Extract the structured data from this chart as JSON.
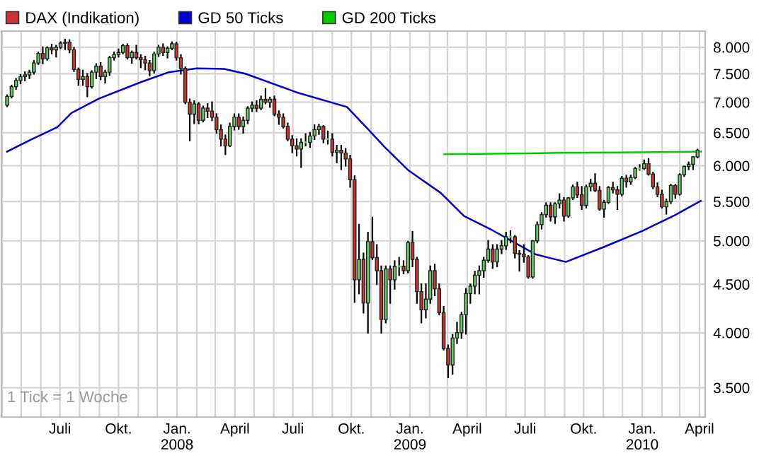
{
  "chart_data": {
    "type": "candlestick",
    "legend": "top left",
    "grid": true,
    "log": "y",
    "marker": "none",
    "line_style": "solid",
    "xlim": [
      "2007-03-31",
      "2010-04-10"
    ],
    "ylim": [
      3260,
      8320
    ],
    "yticks": [
      {
        "value": 3500,
        "label": "3.500"
      },
      {
        "value": 4000,
        "label": "4.000"
      },
      {
        "value": 4500,
        "label": "4.500"
      },
      {
        "value": 5000,
        "label": "5.000"
      },
      {
        "value": 5500,
        "label": "5.500"
      },
      {
        "value": 6000,
        "label": "6.000"
      },
      {
        "value": 6500,
        "label": "6.500"
      },
      {
        "value": 7000,
        "label": "7.000"
      },
      {
        "value": 7500,
        "label": "7.500"
      },
      {
        "value": 8000,
        "label": "8.000"
      }
    ],
    "xticks": [
      {
        "value": "2007-04-01",
        "label": null
      },
      {
        "value": "2007-05-01",
        "label": null
      },
      {
        "value": "2007-06-01",
        "label": null
      },
      {
        "value": "2007-07-01",
        "label": "Juli"
      },
      {
        "value": "2007-08-01",
        "label": null
      },
      {
        "value": "2007-09-01",
        "label": null
      },
      {
        "value": "2007-10-01",
        "label": "Okt."
      },
      {
        "value": "2007-11-01",
        "label": null
      },
      {
        "value": "2007-12-01",
        "label": null
      },
      {
        "value": "2008-01-01",
        "label": "Jan.\n2008"
      },
      {
        "value": "2008-02-01",
        "label": null
      },
      {
        "value": "2008-03-01",
        "label": null
      },
      {
        "value": "2008-04-01",
        "label": "April"
      },
      {
        "value": "2008-05-01",
        "label": null
      },
      {
        "value": "2008-06-01",
        "label": null
      },
      {
        "value": "2008-07-01",
        "label": "Juli"
      },
      {
        "value": "2008-08-01",
        "label": null
      },
      {
        "value": "2008-09-01",
        "label": null
      },
      {
        "value": "2008-10-01",
        "label": "Okt."
      },
      {
        "value": "2008-11-01",
        "label": null
      },
      {
        "value": "2008-12-01",
        "label": null
      },
      {
        "value": "2009-01-01",
        "label": "Jan.\n2009"
      },
      {
        "value": "2009-02-01",
        "label": null
      },
      {
        "value": "2009-03-01",
        "label": null
      },
      {
        "value": "2009-04-01",
        "label": "April"
      },
      {
        "value": "2009-05-01",
        "label": null
      },
      {
        "value": "2009-06-01",
        "label": null
      },
      {
        "value": "2009-07-01",
        "label": "Juli"
      },
      {
        "value": "2009-08-01",
        "label": null
      },
      {
        "value": "2009-09-01",
        "label": null
      },
      {
        "value": "2009-10-01",
        "label": "Okt."
      },
      {
        "value": "2009-11-01",
        "label": null
      },
      {
        "value": "2009-12-01",
        "label": null
      },
      {
        "value": "2010-01-01",
        "label": "Jan.\n2010"
      },
      {
        "value": "2010-02-01",
        "label": null
      },
      {
        "value": "2010-03-01",
        "label": null
      },
      {
        "value": "2010-04-01",
        "label": "April"
      }
    ],
    "annotations": [
      "1 Tick = 1 Woche"
    ],
    "series": [
      {
        "name": "DAX (Indikation)",
        "type": "candlestick",
        "color": "#cc3333",
        "colors": [
          "#66cc66",
          "#66cc66",
          "#66cc66",
          "#66cc66",
          "#66cc66",
          "#66cc66",
          "#66cc66",
          "#66cc66",
          "#cc3333",
          "#66cc66",
          "#cc3333",
          "#66cc66",
          "#66cc66",
          "#66cc66",
          "#cc3333",
          "#cc3333",
          "#cc3333",
          "#66cc66",
          "#cc3333",
          "#66cc66",
          "#66cc66",
          "#cc3333",
          "#66cc66",
          "#66cc66",
          "#66cc66",
          "#66cc66",
          "#66cc66",
          "#cc3333",
          "#66cc66",
          "#cc3333",
          "#cc3333",
          "#cc3333",
          "#cc3333",
          "#66cc66",
          "#66cc66",
          "#cc3333",
          "#66cc66",
          "#66cc66",
          "#cc3333",
          "#cc3333",
          "#cc3333",
          "#cc3333",
          "#66cc66",
          "#cc3333",
          "#66cc66",
          "#cc3333",
          "#cc3333",
          "#cc3333",
          "#cc3333",
          "#cc3333",
          "#66cc66",
          "#66cc66",
          "#cc3333",
          "#66cc66",
          "#66cc66",
          "#66cc66",
          "#cc3333",
          "#66cc66",
          "#cc3333",
          "#66cc66",
          "#cc3333",
          "#cc3333",
          "#cc3333",
          "#cc3333",
          "#cc3333",
          "#cc3333",
          "#66cc66",
          "#66cc66",
          "#66cc66",
          "#66cc66",
          "#66cc66",
          "#cc3333",
          "#66cc66",
          "#cc3333",
          "#66cc66",
          "#cc3333",
          "#cc3333",
          "#cc3333",
          "#cc3333",
          "#66cc66",
          "#cc3333",
          "#66cc66",
          "#cc3333",
          "#cc3333",
          "#cc3333",
          "#66cc66",
          "#cc3333",
          "#66cc66",
          "#66cc66",
          "#cc3333",
          "#66cc66",
          "#cc3333",
          "#cc3333",
          "#cc3333",
          "#66cc66",
          "#66cc66",
          "#cc3333",
          "#cc3333",
          "#cc3333",
          "#cc3333",
          "#66cc66",
          "#66cc66",
          "#66cc66",
          "#66cc66",
          "#66cc66",
          "#66cc66",
          "#66cc66",
          "#66cc66",
          "#66cc66",
          "#cc3333",
          "#66cc66",
          "#66cc66",
          "#66cc66",
          "#66cc66",
          "#cc3333",
          "#cc3333",
          "#cc3333",
          "#cc3333",
          "#66cc66",
          "#66cc66",
          "#66cc66",
          "#66cc66",
          "#cc3333",
          "#66cc66",
          "#66cc66",
          "#cc3333",
          "#66cc66",
          "#66cc66",
          "#cc3333",
          "#cc3333",
          "#66cc66",
          "#66cc66",
          "#cc3333",
          "#cc3333",
          "#66cc66",
          "#66cc66",
          "#cc3333",
          "#cc3333",
          "#66cc66",
          "#cc3333",
          "#66cc66",
          "#66cc66",
          "#66cc66",
          "#66cc66",
          "#cc3333",
          "#cc3333",
          "#cc3333",
          "#cc3333",
          "#66cc66",
          "#66cc66",
          "#cc3333",
          "#66cc66",
          "#66cc66",
          "#66cc66",
          "#66cc66",
          "#66cc66"
        ],
        "x": [
          "2007-04-09",
          "2007-04-16",
          "2007-04-23",
          "2007-04-30",
          "2007-05-07",
          "2007-05-14",
          "2007-05-21",
          "2007-05-28",
          "2007-06-04",
          "2007-06-11",
          "2007-06-18",
          "2007-06-25",
          "2007-07-02",
          "2007-07-09",
          "2007-07-16",
          "2007-07-23",
          "2007-07-30",
          "2007-08-06",
          "2007-08-13",
          "2007-08-20",
          "2007-08-27",
          "2007-09-03",
          "2007-09-10",
          "2007-09-17",
          "2007-09-24",
          "2007-10-01",
          "2007-10-08",
          "2007-10-15",
          "2007-10-22",
          "2007-10-29",
          "2007-11-05",
          "2007-11-12",
          "2007-11-19",
          "2007-11-26",
          "2007-12-03",
          "2007-12-10",
          "2007-12-17",
          "2007-12-24",
          "2007-12-31",
          "2008-01-07",
          "2008-01-14",
          "2008-01-21",
          "2008-01-28",
          "2008-02-04",
          "2008-02-11",
          "2008-02-18",
          "2008-02-25",
          "2008-03-03",
          "2008-03-10",
          "2008-03-17",
          "2008-03-24",
          "2008-03-31",
          "2008-04-07",
          "2008-04-14",
          "2008-04-21",
          "2008-04-28",
          "2008-05-05",
          "2008-05-12",
          "2008-05-19",
          "2008-05-26",
          "2008-06-02",
          "2008-06-09",
          "2008-06-16",
          "2008-06-23",
          "2008-06-30",
          "2008-07-07",
          "2008-07-14",
          "2008-07-21",
          "2008-07-28",
          "2008-08-04",
          "2008-08-11",
          "2008-08-18",
          "2008-08-25",
          "2008-09-01",
          "2008-09-08",
          "2008-09-15",
          "2008-09-22",
          "2008-09-29",
          "2008-10-06",
          "2008-10-13",
          "2008-10-20",
          "2008-10-27",
          "2008-11-03",
          "2008-11-10",
          "2008-11-17",
          "2008-11-24",
          "2008-12-01",
          "2008-12-08",
          "2008-12-15",
          "2008-12-22",
          "2008-12-29",
          "2009-01-05",
          "2009-01-12",
          "2009-01-19",
          "2009-01-26",
          "2009-02-02",
          "2009-02-09",
          "2009-02-16",
          "2009-02-23",
          "2009-03-02",
          "2009-03-09",
          "2009-03-16",
          "2009-03-23",
          "2009-03-30",
          "2009-04-06",
          "2009-04-13",
          "2009-04-20",
          "2009-04-27",
          "2009-05-04",
          "2009-05-11",
          "2009-05-18",
          "2009-05-25",
          "2009-06-01",
          "2009-06-08",
          "2009-06-15",
          "2009-06-22",
          "2009-06-29",
          "2009-07-06",
          "2009-07-13",
          "2009-07-20",
          "2009-07-27",
          "2009-08-03",
          "2009-08-10",
          "2009-08-17",
          "2009-08-24",
          "2009-08-31",
          "2009-09-07",
          "2009-09-14",
          "2009-09-21",
          "2009-09-28",
          "2009-10-05",
          "2009-10-12",
          "2009-10-19",
          "2009-10-26",
          "2009-11-02",
          "2009-11-09",
          "2009-11-16",
          "2009-11-23",
          "2009-11-30",
          "2009-12-07",
          "2009-12-14",
          "2009-12-21",
          "2009-12-28",
          "2010-01-04",
          "2010-01-11",
          "2010-01-18",
          "2010-01-25",
          "2010-02-01",
          "2010-02-08",
          "2010-02-15",
          "2010-02-22",
          "2010-03-01",
          "2010-03-08",
          "2010-03-15",
          "2010-03-22",
          "2010-03-29"
        ],
        "ohlc": [
          [
            6950,
            7120,
            6930,
            7100
          ],
          [
            7100,
            7290,
            7080,
            7270
          ],
          [
            7270,
            7410,
            7230,
            7380
          ],
          [
            7380,
            7480,
            7330,
            7450
          ],
          [
            7450,
            7530,
            7380,
            7480
          ],
          [
            7480,
            7560,
            7420,
            7530
          ],
          [
            7530,
            7740,
            7500,
            7700
          ],
          [
            7700,
            7900,
            7680,
            7880
          ],
          [
            7880,
            8000,
            7690,
            7780
          ],
          [
            7780,
            8000,
            7760,
            7990
          ],
          [
            7990,
            8050,
            7880,
            7950
          ],
          [
            7950,
            8030,
            7820,
            8000
          ],
          [
            8000,
            8100,
            7980,
            8080
          ],
          [
            8080,
            8150,
            7960,
            8100
          ],
          [
            8100,
            8140,
            7900,
            7950
          ],
          [
            7950,
            7990,
            7550,
            7580
          ],
          [
            7580,
            7600,
            7300,
            7400
          ],
          [
            7400,
            7560,
            7300,
            7450
          ],
          [
            7450,
            7500,
            7100,
            7270
          ],
          [
            7270,
            7550,
            7250,
            7530
          ],
          [
            7530,
            7680,
            7420,
            7640
          ],
          [
            7640,
            7700,
            7400,
            7450
          ],
          [
            7450,
            7560,
            7340,
            7530
          ],
          [
            7530,
            7820,
            7480,
            7800
          ],
          [
            7800,
            7900,
            7760,
            7860
          ],
          [
            7860,
            7960,
            7820,
            7900
          ],
          [
            7900,
            8050,
            7880,
            8030
          ],
          [
            8030,
            8060,
            7780,
            7800
          ],
          [
            7800,
            7920,
            7700,
            7900
          ],
          [
            7900,
            8030,
            7780,
            7800
          ],
          [
            7800,
            7850,
            7620,
            7760
          ],
          [
            7760,
            7820,
            7580,
            7700
          ],
          [
            7700,
            7740,
            7470,
            7560
          ],
          [
            7560,
            7900,
            7520,
            7870
          ],
          [
            7870,
            8030,
            7830,
            8000
          ],
          [
            8000,
            8060,
            7850,
            7900
          ],
          [
            7900,
            8000,
            7800,
            7980
          ],
          [
            7980,
            8100,
            7960,
            8067
          ],
          [
            8067,
            8090,
            7760,
            7800
          ],
          [
            7800,
            7850,
            7500,
            7600
          ],
          [
            7600,
            7620,
            6980,
            7000
          ],
          [
            7000,
            7050,
            6380,
            6800
          ],
          [
            6800,
            7020,
            6650,
            6970
          ],
          [
            6970,
            6990,
            6650,
            6700
          ],
          [
            6700,
            6930,
            6680,
            6900
          ],
          [
            6900,
            6970,
            6750,
            6850
          ],
          [
            6850,
            7000,
            6700,
            6750
          ],
          [
            6750,
            6800,
            6500,
            6550
          ],
          [
            6550,
            6620,
            6300,
            6400
          ],
          [
            6400,
            6460,
            6170,
            6300
          ],
          [
            6300,
            6650,
            6290,
            6600
          ],
          [
            6600,
            6800,
            6550,
            6750
          ],
          [
            6750,
            6800,
            6560,
            6600
          ],
          [
            6600,
            6750,
            6500,
            6700
          ],
          [
            6700,
            6920,
            6650,
            6900
          ],
          [
            6900,
            7000,
            6850,
            6950
          ],
          [
            6950,
            7020,
            6850,
            6900
          ],
          [
            6900,
            7100,
            6880,
            7050
          ],
          [
            7050,
            7230,
            6980,
            7000
          ],
          [
            7000,
            7080,
            6920,
            7050
          ],
          [
            7050,
            7100,
            6780,
            6800
          ],
          [
            6800,
            6850,
            6640,
            6750
          ],
          [
            6750,
            6800,
            6580,
            6600
          ],
          [
            6600,
            6650,
            6380,
            6400
          ],
          [
            6400,
            6450,
            6200,
            6300
          ],
          [
            6300,
            6400,
            6150,
            6250
          ],
          [
            6250,
            6400,
            5980,
            6350
          ],
          [
            6350,
            6480,
            6300,
            6350
          ],
          [
            6350,
            6500,
            6280,
            6450
          ],
          [
            6450,
            6620,
            6400,
            6550
          ],
          [
            6550,
            6630,
            6480,
            6600
          ],
          [
            6600,
            6610,
            6350,
            6400
          ],
          [
            6400,
            6520,
            6330,
            6400
          ],
          [
            6400,
            6480,
            6150,
            6200
          ],
          [
            6200,
            6300,
            6050,
            6230
          ],
          [
            6230,
            6300,
            5950,
            6190
          ],
          [
            6190,
            6250,
            6000,
            6100
          ],
          [
            6100,
            6150,
            5700,
            5800
          ],
          [
            5800,
            5850,
            4310,
            4550
          ],
          [
            4550,
            5200,
            4400,
            4780
          ],
          [
            4780,
            4850,
            4200,
            4300
          ],
          [
            4300,
            5100,
            4000,
            4990
          ],
          [
            4990,
            5290,
            4780,
            4800
          ],
          [
            4800,
            4950,
            4500,
            4650
          ],
          [
            4650,
            4700,
            4000,
            4130
          ],
          [
            4130,
            4700,
            4100,
            4670
          ],
          [
            4670,
            4700,
            4300,
            4550
          ],
          [
            4550,
            4760,
            4450,
            4700
          ],
          [
            4700,
            4800,
            4600,
            4700
          ],
          [
            4700,
            4760,
            4620,
            4650
          ],
          [
            4650,
            4990,
            4630,
            4980
          ],
          [
            4980,
            5110,
            4700,
            4780
          ],
          [
            4780,
            4800,
            4300,
            4420
          ],
          [
            4420,
            4500,
            4100,
            4230
          ],
          [
            4230,
            4500,
            4150,
            4340
          ],
          [
            4340,
            4700,
            4300,
            4650
          ],
          [
            4650,
            4720,
            4380,
            4450
          ],
          [
            4450,
            4500,
            4180,
            4200
          ],
          [
            4200,
            4260,
            3840,
            3850
          ],
          [
            3850,
            3880,
            3590,
            3700
          ],
          [
            3700,
            3980,
            3620,
            3950
          ],
          [
            3950,
            4100,
            3900,
            4000
          ],
          [
            4000,
            4200,
            3950,
            4180
          ],
          [
            4180,
            4450,
            3990,
            4400
          ],
          [
            4400,
            4500,
            4300,
            4480
          ],
          [
            4480,
            4640,
            4400,
            4600
          ],
          [
            4600,
            4700,
            4400,
            4650
          ],
          [
            4650,
            4800,
            4580,
            4770
          ],
          [
            4770,
            5000,
            4750,
            4900
          ],
          [
            4900,
            4950,
            4680,
            4750
          ],
          [
            4750,
            4950,
            4700,
            4900
          ],
          [
            4900,
            5000,
            4850,
            4940
          ],
          [
            4940,
            5100,
            4900,
            5050
          ],
          [
            5050,
            5120,
            4980,
            5050
          ],
          [
            5050,
            5060,
            4800,
            4850
          ],
          [
            4850,
            4880,
            4650,
            4840
          ],
          [
            4840,
            4950,
            4750,
            4810
          ],
          [
            4810,
            4820,
            4570,
            4580
          ],
          [
            4580,
            5000,
            4570,
            5000
          ],
          [
            5000,
            5230,
            4980,
            5200
          ],
          [
            5200,
            5350,
            5150,
            5330
          ],
          [
            5330,
            5480,
            5300,
            5450
          ],
          [
            5450,
            5480,
            5250,
            5300
          ],
          [
            5300,
            5480,
            5220,
            5470
          ],
          [
            5470,
            5600,
            5420,
            5520
          ],
          [
            5520,
            5550,
            5250,
            5310
          ],
          [
            5310,
            5550,
            5300,
            5550
          ],
          [
            5550,
            5720,
            5530,
            5700
          ],
          [
            5700,
            5760,
            5560,
            5590
          ],
          [
            5590,
            5700,
            5400,
            5450
          ],
          [
            5450,
            5720,
            5420,
            5700
          ],
          [
            5700,
            5800,
            5650,
            5750
          ],
          [
            5750,
            5880,
            5640,
            5650
          ],
          [
            5650,
            5700,
            5390,
            5400
          ],
          [
            5400,
            5510,
            5300,
            5490
          ],
          [
            5490,
            5700,
            5480,
            5690
          ],
          [
            5690,
            5760,
            5620,
            5660
          ],
          [
            5660,
            5700,
            5400,
            5600
          ],
          [
            5600,
            5840,
            5580,
            5820
          ],
          [
            5820,
            5860,
            5700,
            5770
          ],
          [
            5770,
            5860,
            5740,
            5830
          ],
          [
            5830,
            5970,
            5820,
            5960
          ],
          [
            5960,
            6010,
            5940,
            5960
          ],
          [
            5960,
            6080,
            5950,
            6030
          ],
          [
            6030,
            6100,
            5870,
            5880
          ],
          [
            5880,
            5900,
            5680,
            5700
          ],
          [
            5700,
            5750,
            5570,
            5600
          ],
          [
            5600,
            5650,
            5420,
            5430
          ],
          [
            5430,
            5530,
            5340,
            5500
          ],
          [
            5500,
            5730,
            5480,
            5720
          ],
          [
            5720,
            5730,
            5550,
            5600
          ],
          [
            5600,
            5880,
            5590,
            5870
          ],
          [
            5870,
            5990,
            5850,
            5990
          ],
          [
            5990,
            6050,
            5950,
            6020
          ],
          [
            6020,
            6130,
            5950,
            6130
          ],
          [
            6130,
            6240,
            6120,
            6230
          ]
        ]
      },
      {
        "name": "GD 50 Ticks",
        "type": "line",
        "color": "#0000cc",
        "x": [
          "2007-04-09",
          "2007-05-14",
          "2007-06-27",
          "2007-07-19",
          "2007-08-31",
          "2007-11-05",
          "2007-12-19",
          "2008-02-01",
          "2008-03-15",
          "2008-04-18",
          "2008-07-07",
          "2008-09-24",
          "2008-10-25",
          "2008-11-22",
          "2008-12-30",
          "2009-02-18",
          "2009-03-27",
          "2009-05-06",
          "2009-07-17",
          "2009-09-03",
          "2009-11-03",
          "2010-01-01",
          "2010-02-21",
          "2010-04-03"
        ],
        "values": [
          6210,
          6380,
          6590,
          6820,
          7060,
          7350,
          7530,
          7600,
          7590,
          7500,
          7170,
          6920,
          6580,
          6280,
          5930,
          5620,
          5310,
          5150,
          4840,
          4750,
          4930,
          5120,
          5320,
          5510
        ]
      },
      {
        "name": "GD 200 Ticks",
        "type": "line",
        "color": "#00cc00",
        "x": [
          "2009-02-24",
          "2009-08-23",
          "2010-01-01",
          "2010-04-03"
        ],
        "values": [
          6170,
          6190,
          6200,
          6210
        ]
      }
    ]
  }
}
